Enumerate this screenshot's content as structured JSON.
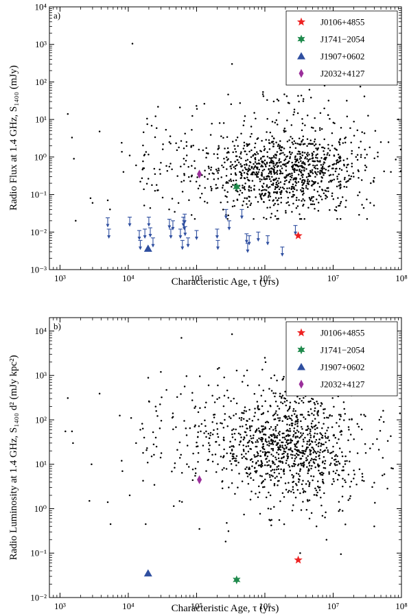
{
  "chart_data": [
    {
      "type": "scatter",
      "panel_label": "a)",
      "xlabel": "Characteristic Age, τ (yrs)",
      "ylabel": "Radio Flux at 1.4 GHz, S₁₄₀₀ (mJy)",
      "xscale": "log",
      "yscale": "log",
      "xlim": [
        700,
        100000000
      ],
      "ylim": [
        0.001,
        10000
      ],
      "x_ticks": [
        1000,
        10000,
        100000,
        1000000,
        10000000,
        100000000
      ],
      "x_tick_labels": [
        "10³",
        "10⁴",
        "10⁵",
        "10⁶",
        "10⁷",
        "10⁸"
      ],
      "y_ticks": [
        0.001,
        0.01,
        0.1,
        1,
        10,
        100,
        1000,
        10000
      ],
      "y_tick_labels": [
        "10⁻³",
        "10⁻²",
        "10⁻¹",
        "10⁰",
        "10¹",
        "10²",
        "10³",
        "10⁴"
      ],
      "legend_position": "top-right",
      "background_points": {
        "color": "#000000",
        "approx_count": 1200,
        "sample": [
          [
            1300,
            14
          ],
          [
            1500,
            3.3
          ],
          [
            1600,
            0.9
          ],
          [
            1700,
            0.02
          ],
          [
            2800,
            0.08
          ],
          [
            3000,
            0.06
          ],
          [
            3800,
            4.8
          ],
          [
            5000,
            0.07
          ],
          [
            5400,
            0.04
          ],
          [
            8000,
            2.4
          ],
          [
            8500,
            0.4
          ],
          [
            10500,
            1.1
          ],
          [
            11500,
            1050
          ],
          [
            13000,
            0.6
          ],
          [
            15000,
            0.22
          ],
          [
            17000,
            0.5
          ],
          [
            19000,
            7.5
          ],
          [
            22000,
            6.8
          ],
          [
            26000,
            5.9
          ],
          [
            30000,
            0.7
          ],
          [
            40000,
            2.5
          ],
          [
            55000,
            1.8
          ],
          [
            70000,
            0.8
          ],
          [
            85000,
            5.3
          ],
          [
            95000,
            0.5
          ],
          [
            120000,
            0.33
          ],
          [
            180000,
            1.2
          ],
          [
            250000,
            8.0
          ],
          [
            330000,
            300
          ],
          [
            400000,
            0.12
          ],
          [
            500000,
            2.0
          ],
          [
            700000,
            15
          ],
          [
            900000,
            0.25
          ],
          [
            1200000,
            4.5
          ],
          [
            1600000,
            0.08
          ],
          [
            2200000,
            28
          ],
          [
            3000000,
            0.6
          ],
          [
            4200000,
            3.0
          ],
          [
            6000000,
            0.2
          ],
          [
            7500000,
            80
          ],
          [
            9000000,
            1.5
          ],
          [
            12000000,
            0.05
          ],
          [
            16000000,
            12
          ],
          [
            20000000,
            0.3
          ],
          [
            25000000,
            75
          ],
          [
            35000000,
            0.06
          ],
          [
            50000000,
            2.5
          ],
          [
            70000000,
            0.4
          ],
          [
            90000000,
            10
          ]
        ]
      },
      "upper_limits": {
        "color": "#2f4fa0",
        "points": [
          [
            5000,
            0.024
          ],
          [
            5200,
            0.012
          ],
          [
            10500,
            0.025
          ],
          [
            14500,
            0.011
          ],
          [
            15000,
            0.006
          ],
          [
            17500,
            0.012
          ],
          [
            20000,
            0.025
          ],
          [
            21000,
            0.013
          ],
          [
            23000,
            0.007
          ],
          [
            40000,
            0.022
          ],
          [
            42000,
            0.012
          ],
          [
            45000,
            0.02
          ],
          [
            58000,
            0.012
          ],
          [
            62000,
            0.006
          ],
          [
            64000,
            0.025
          ],
          [
            66000,
            0.02
          ],
          [
            67000,
            0.03
          ],
          [
            68000,
            0.014
          ],
          [
            75000,
            0.007
          ],
          [
            100000,
            0.011
          ],
          [
            200000,
            0.012
          ],
          [
            205000,
            0.006
          ],
          [
            270000,
            0.04
          ],
          [
            300000,
            0.02
          ],
          [
            460000,
            0.04
          ],
          [
            540000,
            0.009
          ],
          [
            560000,
            0.005
          ],
          [
            590000,
            0.008
          ],
          [
            800000,
            0.01
          ],
          [
            1100000,
            0.008
          ],
          [
            1800000,
            0.004
          ],
          [
            2800000,
            0.015
          ]
        ]
      },
      "highlighted_pulsars": [
        {
          "name": "J0106+4855",
          "tau": 3080000,
          "value": 0.008,
          "marker": "star5",
          "color": "#ee2222"
        },
        {
          "name": "J1741−2054",
          "tau": 386000,
          "value": 0.16,
          "marker": "star6",
          "color": "#1f8a4c"
        },
        {
          "name": "J1907+0602",
          "tau": 19500,
          "value": 0.0036,
          "marker": "triangle",
          "color": "#2f4fa0"
        },
        {
          "name": "J2032+4127",
          "tau": 110000,
          "value": 0.35,
          "marker": "diamond",
          "color": "#9b2f9b"
        }
      ]
    },
    {
      "type": "scatter",
      "panel_label": "b)",
      "xlabel": "Characteristic Age, τ (yrs)",
      "ylabel": "Radio Luminosity at 1.4 GHz, S₁₄₀₀ d² (mJy kpc²)",
      "xscale": "log",
      "yscale": "log",
      "xlim": [
        700,
        100000000
      ],
      "ylim": [
        0.01,
        20000
      ],
      "x_ticks": [
        1000,
        10000,
        100000,
        1000000,
        10000000,
        100000000
      ],
      "x_tick_labels": [
        "10³",
        "10⁴",
        "10⁵",
        "10⁶",
        "10⁷",
        "10⁸"
      ],
      "y_ticks": [
        0.01,
        0.1,
        1,
        10,
        100,
        1000,
        10000
      ],
      "y_tick_labels": [
        "10⁻²",
        "10⁻¹",
        "10⁰",
        "10¹",
        "10²",
        "10³",
        "10⁴"
      ],
      "legend_position": "top-right",
      "background_points": {
        "color": "#000000",
        "approx_count": 1200,
        "sample": [
          [
            1200,
            55
          ],
          [
            1300,
            310
          ],
          [
            1500,
            55
          ],
          [
            1550,
            30
          ],
          [
            2700,
            1.5
          ],
          [
            2900,
            10
          ],
          [
            3800,
            390
          ],
          [
            5000,
            1.4
          ],
          [
            5500,
            0.45
          ],
          [
            7500,
            125
          ],
          [
            8000,
            12
          ],
          [
            8200,
            7
          ],
          [
            10500,
            2.0
          ],
          [
            11000,
            110
          ],
          [
            13000,
            30
          ],
          [
            15000,
            60
          ],
          [
            18000,
            0.45
          ],
          [
            22000,
            15
          ],
          [
            30000,
            1200
          ],
          [
            45000,
            140
          ],
          [
            60000,
            7000
          ],
          [
            80000,
            65
          ],
          [
            100000,
            25
          ],
          [
            110000,
            0.35
          ],
          [
            150000,
            600
          ],
          [
            250000,
            40
          ],
          [
            330000,
            8500
          ],
          [
            400000,
            3
          ],
          [
            550000,
            1300
          ],
          [
            700000,
            120
          ],
          [
            1000000,
            2500
          ],
          [
            1400000,
            10
          ],
          [
            2000000,
            300
          ],
          [
            2600000,
            1.2
          ],
          [
            3500000,
            45
          ],
          [
            4500000,
            0.6
          ],
          [
            6000000,
            150
          ],
          [
            8000000,
            0.2
          ],
          [
            10000000,
            25
          ],
          [
            13000000,
            0.095
          ],
          [
            17000000,
            60
          ],
          [
            22000000,
            3.5
          ],
          [
            30000000,
            18
          ],
          [
            40000000,
            0.4
          ],
          [
            55000000,
            90
          ],
          [
            75000000,
            8
          ],
          [
            95000000,
            140
          ]
        ]
      },
      "highlighted_pulsars": [
        {
          "name": "J0106+4855",
          "tau": 3080000,
          "value": 0.07,
          "marker": "star5",
          "color": "#ee2222"
        },
        {
          "name": "J1741−2054",
          "tau": 386000,
          "value": 0.025,
          "marker": "star6",
          "color": "#1f8a4c"
        },
        {
          "name": "J1907+0602",
          "tau": 19500,
          "value": 0.035,
          "marker": "triangle",
          "color": "#2f4fa0"
        },
        {
          "name": "J2032+4127",
          "tau": 110000,
          "value": 4.5,
          "marker": "diamond",
          "color": "#9b2f9b"
        }
      ]
    }
  ]
}
